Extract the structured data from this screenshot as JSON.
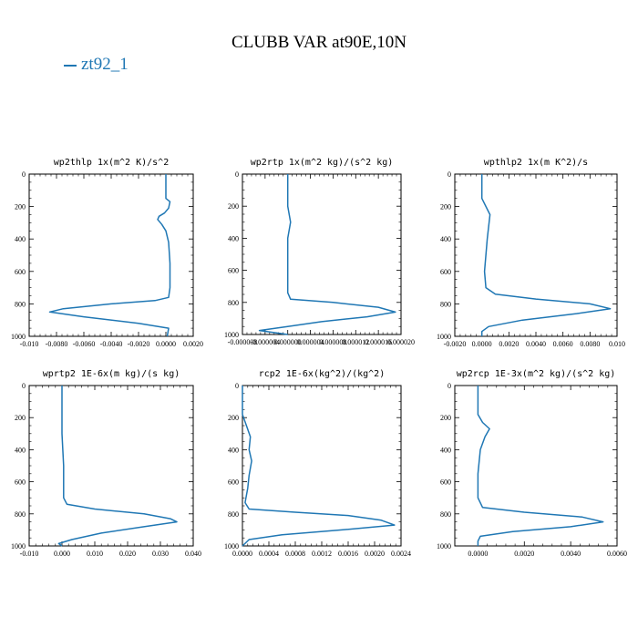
{
  "title": "CLUBB VAR at90E,10N",
  "legend": {
    "label": "zt92_1",
    "color": "#1f77b4"
  },
  "chart_data": [
    {
      "type": "line",
      "title": "wp2thlp 1x(m^2 K)/s^2",
      "xlim": [
        -0.01,
        0.002
      ],
      "ylim": [
        1000,
        0
      ],
      "xticks": [
        -0.01,
        -0.008,
        -0.006,
        -0.004,
        -0.002,
        0.0,
        0.002
      ],
      "xtick_labels": [
        "-0.010",
        "-0.0080",
        "-0.0060",
        "-0.0040",
        "-0.0020",
        "0.0000",
        "0.0020"
      ],
      "yticks": [
        0,
        200,
        400,
        600,
        800,
        1000
      ],
      "ytick_labels": [
        "0",
        "200",
        "400",
        "600",
        "800",
        "1000"
      ],
      "series": [
        {
          "color": "#1f77b4",
          "points": [
            [
              0.0,
              0
            ],
            [
              0.0,
              150
            ],
            [
              0.0003,
              170
            ],
            [
              0.0002,
              210
            ],
            [
              -0.0001,
              240
            ],
            [
              -0.0005,
              260
            ],
            [
              -0.0006,
              280
            ],
            [
              -0.0003,
              310
            ],
            [
              0.0,
              350
            ],
            [
              0.0002,
              420
            ],
            [
              0.0003,
              550
            ],
            [
              0.0003,
              700
            ],
            [
              0.0002,
              760
            ],
            [
              -0.0008,
              780
            ],
            [
              -0.004,
              800
            ],
            [
              -0.0075,
              830
            ],
            [
              -0.0085,
              850
            ],
            [
              -0.006,
              880
            ],
            [
              -0.002,
              920
            ],
            [
              0.0002,
              950
            ],
            [
              0.0001,
              1000
            ]
          ]
        }
      ]
    },
    {
      "type": "line",
      "title": "wp2rtp 1x(m^2 kg)/(s^2 kg)",
      "xlim": [
        -8e-06,
        2e-05
      ],
      "ylim": [
        1000,
        0
      ],
      "xticks": [
        -8e-06,
        -4e-06,
        0.0,
        4e-06,
        8e-06,
        1.2e-05,
        1.6e-05,
        2e-05
      ],
      "xtick_labels": [
        "-0.000008",
        "-0.000004",
        "0.000000",
        "0.000004",
        "0.000008",
        "0.000012",
        "0.000016",
        "0.000020"
      ],
      "yticks": [
        0,
        200,
        400,
        600,
        800,
        1000
      ],
      "ytick_labels": [
        "0",
        "200",
        "400",
        "600",
        "800",
        "1000"
      ],
      "series": [
        {
          "color": "#1f77b4",
          "points": [
            [
              0.0,
              0
            ],
            [
              0.0,
              200
            ],
            [
              5e-07,
              300
            ],
            [
              0.0,
              400
            ],
            [
              0.0,
              600
            ],
            [
              0.0,
              740
            ],
            [
              5e-07,
              780
            ],
            [
              8e-06,
              800
            ],
            [
              1.6e-05,
              830
            ],
            [
              1.9e-05,
              860
            ],
            [
              1.4e-05,
              890
            ],
            [
              6e-06,
              920
            ],
            [
              0.0,
              950
            ],
            [
              -5e-06,
              975
            ],
            [
              -2e-06,
              990
            ],
            [
              0.0,
              1000
            ]
          ]
        }
      ]
    },
    {
      "type": "line",
      "title": "wpthlp2 1x(m K^2)/s",
      "xlim": [
        -0.002,
        0.01
      ],
      "ylim": [
        1000,
        0
      ],
      "xticks": [
        -0.002,
        0.0,
        0.002,
        0.004,
        0.006,
        0.008,
        0.01
      ],
      "xtick_labels": [
        "-0.0020",
        "0.0000",
        "0.0020",
        "0.0040",
        "0.0060",
        "0.0080",
        "0.010"
      ],
      "yticks": [
        0,
        200,
        400,
        600,
        800,
        1000
      ],
      "ytick_labels": [
        "0",
        "200",
        "400",
        "600",
        "800",
        "1000"
      ],
      "series": [
        {
          "color": "#1f77b4",
          "points": [
            [
              0.0,
              0
            ],
            [
              0.0,
              150
            ],
            [
              0.0006,
              250
            ],
            [
              0.0004,
              400
            ],
            [
              0.0002,
              600
            ],
            [
              0.0003,
              700
            ],
            [
              0.001,
              740
            ],
            [
              0.004,
              770
            ],
            [
              0.008,
              800
            ],
            [
              0.0095,
              830
            ],
            [
              0.007,
              860
            ],
            [
              0.003,
              900
            ],
            [
              0.0005,
              940
            ],
            [
              0.0,
              970
            ],
            [
              0.0,
              1000
            ]
          ]
        }
      ]
    },
    {
      "type": "line",
      "title": "wprtp2 1E-6x(m kg)/(s kg)",
      "xlim": [
        -0.01,
        0.04
      ],
      "ylim": [
        1000,
        0
      ],
      "xticks": [
        -0.01,
        0.0,
        0.01,
        0.02,
        0.03,
        0.04
      ],
      "xtick_labels": [
        "-0.010",
        "0.000",
        "0.010",
        "0.020",
        "0.030",
        "0.040"
      ],
      "yticks": [
        0,
        200,
        400,
        600,
        800,
        1000
      ],
      "ytick_labels": [
        "0",
        "200",
        "400",
        "600",
        "800",
        "1000"
      ],
      "series": [
        {
          "color": "#1f77b4",
          "points": [
            [
              0.0,
              0
            ],
            [
              0.0,
              300
            ],
            [
              0.0005,
              500
            ],
            [
              0.0005,
              700
            ],
            [
              0.0015,
              740
            ],
            [
              0.01,
              770
            ],
            [
              0.025,
              800
            ],
            [
              0.033,
              830
            ],
            [
              0.035,
              850
            ],
            [
              0.025,
              880
            ],
            [
              0.012,
              920
            ],
            [
              0.003,
              960
            ],
            [
              -0.001,
              985
            ],
            [
              0.0,
              1000
            ]
          ]
        }
      ]
    },
    {
      "type": "line",
      "title": "rcp2 1E-6x(kg^2)/(kg^2)",
      "xlim": [
        0.0,
        0.0024
      ],
      "ylim": [
        1000,
        0
      ],
      "xticks": [
        0.0,
        0.0004,
        0.0008,
        0.0012,
        0.0016,
        0.002,
        0.0024
      ],
      "xtick_labels": [
        "0.0000",
        "0.0004",
        "0.0008",
        "0.0012",
        "0.0016",
        "0.0020",
        "0.0024"
      ],
      "yticks": [
        0,
        200,
        400,
        600,
        800,
        1000
      ],
      "ytick_labels": [
        "0",
        "200",
        "400",
        "600",
        "800",
        "1000"
      ],
      "series": [
        {
          "color": "#1f77b4",
          "points": [
            [
              0.0,
              0
            ],
            [
              0.0,
              180
            ],
            [
              6e-05,
              250
            ],
            [
              0.00012,
              320
            ],
            [
              0.0001,
              400
            ],
            [
              0.00014,
              470
            ],
            [
              0.0001,
              560
            ],
            [
              8e-05,
              640
            ],
            [
              4e-05,
              730
            ],
            [
              0.0001,
              770
            ],
            [
              0.0008,
              790
            ],
            [
              0.0016,
              810
            ],
            [
              0.0021,
              840
            ],
            [
              0.0023,
              870
            ],
            [
              0.0015,
              900
            ],
            [
              0.0006,
              930
            ],
            [
              0.0001,
              960
            ],
            [
              0.0,
              1000
            ]
          ]
        }
      ]
    },
    {
      "type": "line",
      "title": "wp2rcp 1E-3x(m^2 kg)/(s^2 kg)",
      "xlim": [
        -0.001,
        0.006
      ],
      "ylim": [
        1000,
        0
      ],
      "xticks": [
        0.0,
        0.002,
        0.004,
        0.006
      ],
      "xtick_labels": [
        "0.0000",
        "0.0020",
        "0.0040",
        "0.0060"
      ],
      "yticks": [
        0,
        200,
        400,
        600,
        800,
        1000
      ],
      "ytick_labels": [
        "0",
        "200",
        "400",
        "600",
        "800",
        "1000"
      ],
      "series": [
        {
          "color": "#1f77b4",
          "points": [
            [
              0.0,
              0
            ],
            [
              0.0,
              180
            ],
            [
              0.0002,
              230
            ],
            [
              0.0005,
              270
            ],
            [
              0.0003,
              320
            ],
            [
              0.0001,
              400
            ],
            [
              0.0,
              550
            ],
            [
              0.0,
              700
            ],
            [
              0.0002,
              760
            ],
            [
              0.002,
              790
            ],
            [
              0.0045,
              820
            ],
            [
              0.0054,
              850
            ],
            [
              0.004,
              880
            ],
            [
              0.0015,
              910
            ],
            [
              0.0001,
              940
            ],
            [
              0.0,
              970
            ],
            [
              0.0,
              1000
            ]
          ]
        }
      ]
    }
  ]
}
